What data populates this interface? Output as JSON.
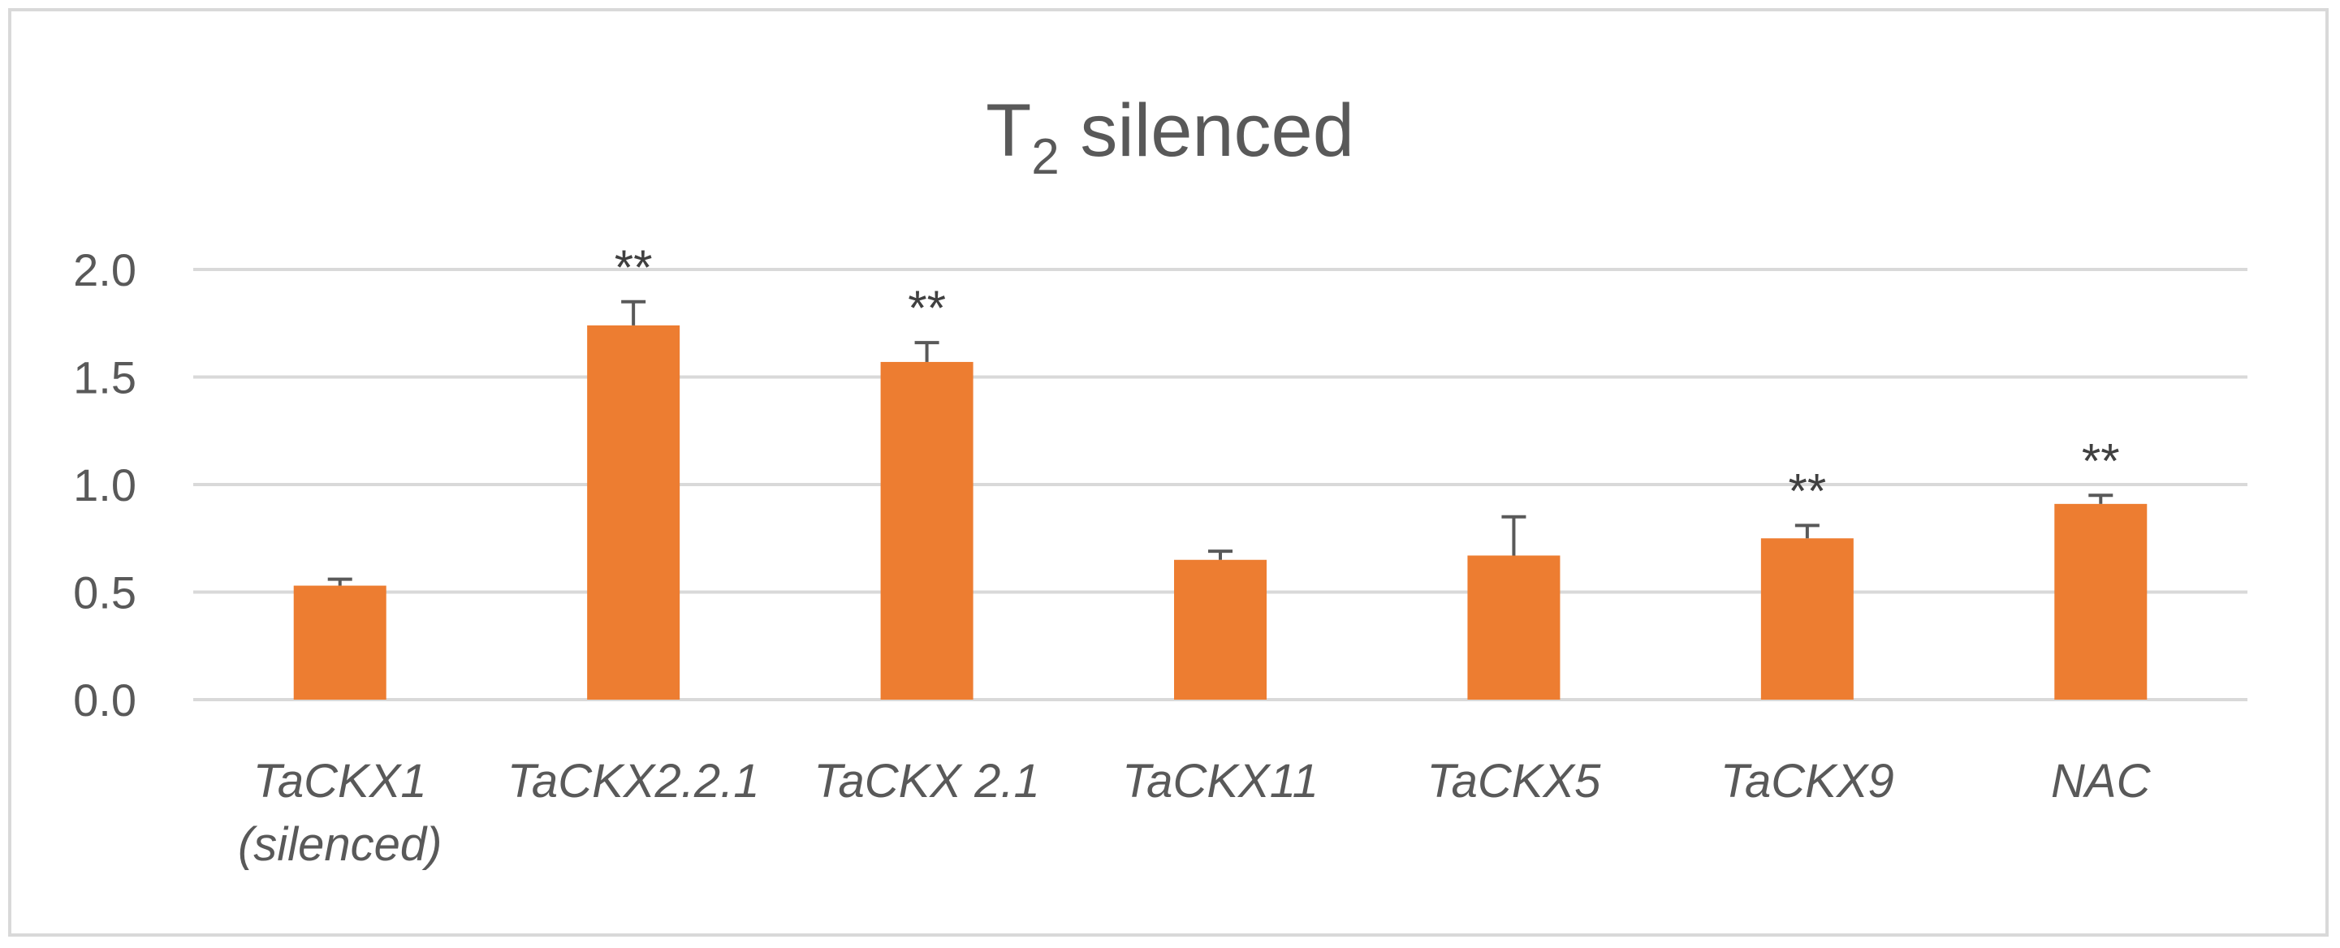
{
  "chart_data": {
    "type": "bar",
    "title": "T",
    "title_subscript": "2",
    "title_rest": " silenced",
    "categories": [
      [
        "TaCKX1",
        "(silenced)"
      ],
      [
        "TaCKX2.2.1"
      ],
      [
        "TaCKX 2.1"
      ],
      [
        "TaCKX11"
      ],
      [
        "TaCKX5"
      ],
      [
        "TaCKX9"
      ],
      [
        "NAC"
      ]
    ],
    "values": [
      0.53,
      1.74,
      1.57,
      0.65,
      0.67,
      0.75,
      0.91
    ],
    "errors": [
      0.03,
      0.11,
      0.09,
      0.04,
      0.18,
      0.06,
      0.04
    ],
    "significance": [
      "",
      "**",
      "**",
      "",
      "",
      "**",
      "**"
    ],
    "yticks": [
      "0.0",
      "0.5",
      "1.0",
      "1.5",
      "2.0"
    ],
    "ylim": [
      0,
      2.0
    ],
    "grid": true,
    "bar_color": "#ed7d31",
    "error_color": "#595959",
    "grid_color": "#d9d9d9",
    "xlabel": "",
    "ylabel": ""
  }
}
